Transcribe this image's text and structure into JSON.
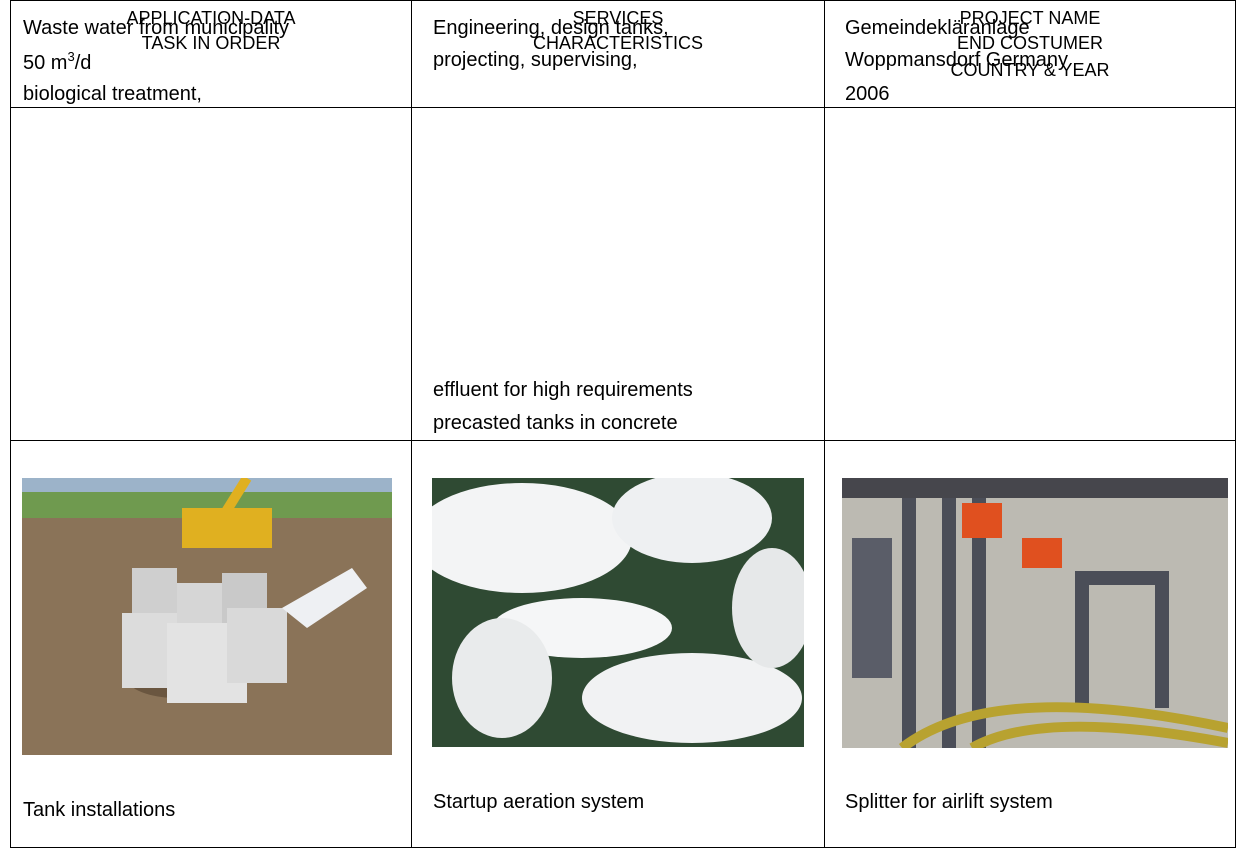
{
  "table": {
    "header": [
      "APPLICATION-DATA",
      "TASK IN ORDER",
      "SERVICES",
      "CHARACTERISTICS",
      "PROJECT NAME",
      "END COSTUMER",
      "COUNTRY & YEAR"
    ],
    "application": {
      "line1": "Waste water from municipality",
      "capacity_prefix": "50  m",
      "capacity_superscript": "3",
      "capacity_suffix": "/d",
      "line3": "biological treatment,"
    },
    "services": [
      "Engineering, design tanks,",
      "projecting, supervising,",
      "effluent for high requirements",
      "precasted tanks in concrete"
    ],
    "project": [
      "Gemeindekläranlage",
      "Woppmansdorf Germany",
      "2006"
    ],
    "captions": [
      "Tank installations",
      "Startup aeration system",
      "Splitter for airlift system"
    ]
  }
}
